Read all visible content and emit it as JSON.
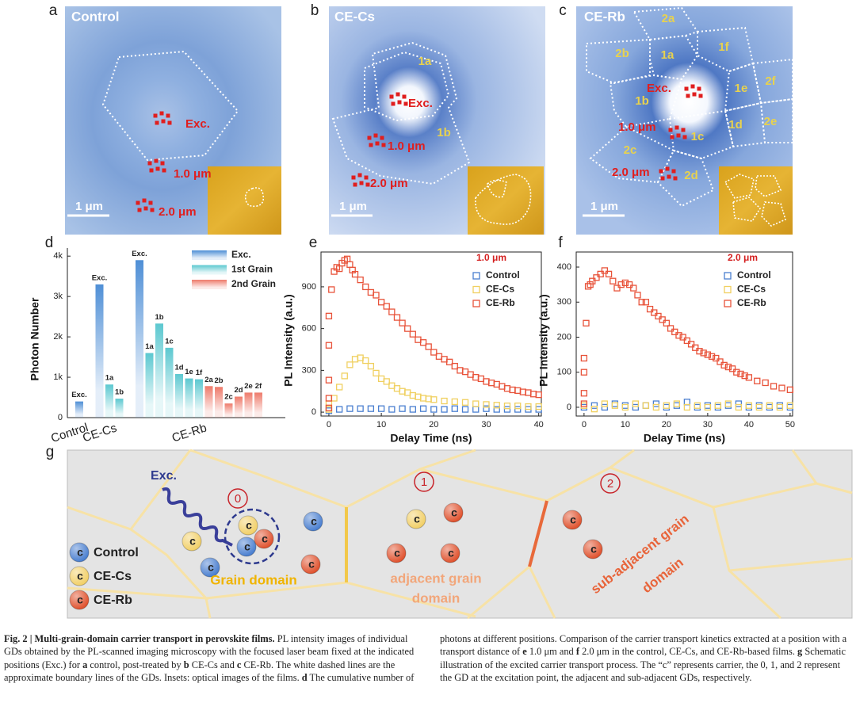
{
  "panel_labels": [
    "a",
    "b",
    "c",
    "d",
    "e",
    "f",
    "g"
  ],
  "images": [
    {
      "title": "Control",
      "exc": "Exc.",
      "near": "1.0 μm",
      "far": "2.0 μm",
      "scale": "1 μm",
      "grains": []
    },
    {
      "title": "CE-Cs",
      "exc": "Exc.",
      "near": "1.0 μm",
      "far": "2.0 μm",
      "scale": "1 μm",
      "grains": [
        "1a",
        "1b"
      ]
    },
    {
      "title": "CE-Rb",
      "exc": "Exc.",
      "near": "1.0 μm",
      "far": "2.0 μm",
      "scale": "1 μm",
      "grains": [
        "2a",
        "2b",
        "1a",
        "1f",
        "1b",
        "1e",
        "2f",
        "1d",
        "2e",
        "1c",
        "2c",
        "2d"
      ]
    }
  ],
  "chart_data": [
    {
      "type": "bar",
      "ylabel": "Photon Number",
      "groups": [
        "Control",
        "CE-Cs",
        "CE-Rb"
      ],
      "categories": [
        [
          "Exc."
        ],
        [
          "Exc.",
          "1a",
          "1b"
        ],
        [
          "Exc.",
          "1a",
          "1b",
          "1c",
          "1d",
          "1e",
          "1f",
          "2a",
          "2b",
          "2c",
          "2d",
          "2e",
          "2f"
        ]
      ],
      "series": [
        {
          "name": "Exc.",
          "color": "#4f8fd6",
          "values": [
            [
              400
            ],
            [
              3300,
              null,
              null
            ],
            [
              3900,
              null,
              null,
              null,
              null,
              null,
              null,
              null,
              null,
              null,
              null,
              null,
              null
            ]
          ]
        },
        {
          "name": "1st Grain",
          "color": "#5cc8d0",
          "values": [
            [
              null
            ],
            [
              null,
              820,
              470
            ],
            [
              null,
              1600,
              2330,
              1730,
              1080,
              970,
              950,
              null,
              null,
              null,
              null,
              null,
              null
            ]
          ]
        },
        {
          "name": "2nd Grain",
          "color": "#ee7a6a",
          "values": [
            [
              null
            ],
            [
              null,
              null,
              null
            ],
            [
              null,
              null,
              null,
              null,
              null,
              null,
              null,
              780,
              760,
              350,
              520,
              620,
              620
            ]
          ]
        }
      ],
      "ylim": [
        0,
        4200
      ],
      "yticks": [
        0,
        {
          "value": 1000,
          "label": "1k"
        },
        {
          "value": 2000,
          "label": "2k"
        },
        {
          "value": 3000,
          "label": "3k"
        },
        {
          "value": 4000,
          "label": "4k"
        }
      ],
      "legend": "upper right"
    },
    {
      "type": "scatter",
      "annotation": "1.0 μm",
      "annotation_color": "#d42020",
      "xlabel": "Delay Time (ns)",
      "ylabel": "PL Intensity (a.u.)",
      "xlim": [
        -1.5,
        40.5
      ],
      "xticks": [
        0,
        10,
        20,
        30,
        40
      ],
      "ylim": [
        -28,
        1150
      ],
      "yticks": [
        0,
        300,
        600,
        900
      ],
      "legend": "upper right",
      "series": [
        {
          "name": "Control",
          "color": "#4a7fd0",
          "x": [
            0,
            2,
            4,
            6,
            8,
            10,
            12,
            14,
            16,
            18,
            20,
            22,
            24,
            26,
            28,
            30,
            32,
            34,
            36,
            38,
            40
          ],
          "values": [
            10,
            20,
            25,
            25,
            25,
            25,
            20,
            25,
            20,
            25,
            20,
            20,
            25,
            20,
            20,
            25,
            20,
            20,
            20,
            20,
            20
          ]
        },
        {
          "name": "CE-Cs",
          "color": "#f0d060",
          "x": [
            0,
            0,
            1,
            2,
            3,
            4,
            5,
            6,
            7,
            8,
            9,
            10,
            11,
            12,
            13,
            14,
            15,
            16,
            17,
            18,
            19,
            20,
            22,
            24,
            26,
            28,
            30,
            32,
            34,
            36,
            38,
            40
          ],
          "values": [
            20,
            60,
            100,
            180,
            260,
            340,
            380,
            390,
            370,
            330,
            280,
            240,
            220,
            190,
            170,
            150,
            140,
            120,
            110,
            100,
            95,
            90,
            80,
            75,
            70,
            60,
            55,
            50,
            45,
            45,
            40,
            40
          ]
        },
        {
          "name": "CE-Rb",
          "color": "#e8533a",
          "x": [
            0,
            0,
            0,
            0,
            0,
            0.5,
            1,
            1.5,
            2,
            2.5,
            3,
            3.5,
            4,
            4.5,
            5,
            6,
            7,
            8,
            9,
            10,
            11,
            12,
            13,
            14,
            15,
            16,
            17,
            18,
            19,
            20,
            21,
            22,
            23,
            24,
            25,
            26,
            27,
            28,
            29,
            30,
            31,
            32,
            33,
            34,
            35,
            36,
            37,
            38,
            39,
            40
          ],
          "values": [
            30,
            100,
            230,
            480,
            690,
            880,
            1010,
            1040,
            1030,
            1070,
            1090,
            1100,
            1060,
            1020,
            990,
            950,
            900,
            860,
            840,
            790,
            760,
            720,
            680,
            640,
            600,
            560,
            520,
            500,
            470,
            430,
            400,
            380,
            360,
            330,
            300,
            290,
            270,
            250,
            240,
            220,
            210,
            200,
            185,
            170,
            160,
            155,
            145,
            140,
            130,
            125
          ]
        }
      ]
    },
    {
      "type": "scatter",
      "annotation": "2.0 μm",
      "annotation_color": "#d42020",
      "xlabel": "Delay Time (ns)",
      "ylabel": "PL Intensity (a.u.)",
      "xlim": [
        -1.9,
        50.6
      ],
      "xticks": [
        0,
        10,
        20,
        30,
        40,
        50
      ],
      "ylim": [
        -25,
        443
      ],
      "yticks": [
        0,
        100,
        200,
        300,
        400
      ],
      "legend": "upper right",
      "series": [
        {
          "name": "Control",
          "color": "#4a7fd0",
          "x": [
            0,
            2.5,
            5,
            7.5,
            10,
            12.5,
            15,
            17.5,
            20,
            22.5,
            25,
            27.5,
            30,
            32.5,
            35,
            37.5,
            40,
            42.5,
            45,
            47.5,
            50
          ],
          "values": [
            0,
            5,
            0,
            10,
            5,
            0,
            5,
            10,
            0,
            5,
            15,
            0,
            5,
            0,
            5,
            10,
            0,
            5,
            0,
            5,
            0
          ]
        },
        {
          "name": "CE-Cs",
          "color": "#f0d060",
          "x": [
            0,
            2.5,
            5,
            7.5,
            10,
            12.5,
            15,
            17.5,
            20,
            22.5,
            25,
            27.5,
            30,
            32.5,
            35,
            37.5,
            40,
            42.5,
            45,
            47.5,
            50
          ],
          "values": [
            5,
            -5,
            10,
            5,
            0,
            10,
            5,
            0,
            5,
            10,
            0,
            5,
            0,
            5,
            10,
            0,
            5,
            0,
            5,
            0,
            5
          ]
        },
        {
          "name": "CE-Rb",
          "color": "#e8533a",
          "x": [
            0,
            0,
            0,
            0,
            0.5,
            1,
            1.5,
            2,
            3,
            4,
            5,
            6,
            7,
            8,
            9,
            10,
            11,
            12,
            13,
            14,
            15,
            16,
            17,
            18,
            19,
            20,
            21,
            22,
            23,
            24,
            25,
            26,
            27,
            28,
            29,
            30,
            31,
            32,
            33,
            34,
            35,
            36,
            37,
            38,
            39,
            40,
            42,
            44,
            46,
            48,
            50
          ],
          "values": [
            10,
            40,
            100,
            140,
            240,
            345,
            350,
            360,
            370,
            380,
            390,
            380,
            360,
            340,
            350,
            355,
            350,
            340,
            320,
            300,
            300,
            280,
            270,
            260,
            250,
            240,
            225,
            215,
            205,
            200,
            190,
            180,
            170,
            160,
            155,
            150,
            145,
            140,
            130,
            120,
            115,
            110,
            100,
            95,
            90,
            85,
            75,
            70,
            60,
            55,
            50
          ]
        }
      ]
    }
  ],
  "schematic": {
    "excitation": "Exc.",
    "domains": [
      "0",
      "1",
      "2"
    ],
    "carrier_label": "c",
    "legend": [
      {
        "name": "Control",
        "color": "#4a7fd0"
      },
      {
        "name": "CE-Cs",
        "color": "#f2d068"
      },
      {
        "name": "CE-Rb",
        "color": "#e0522e"
      }
    ],
    "domain_labels": [
      {
        "lines": [
          "Grain domain"
        ],
        "color": "#f0b400"
      },
      {
        "lines": [
          "adjacent grain",
          "domain"
        ],
        "color": "#f2a67a"
      },
      {
        "lines": [
          "sub-adjacent grain",
          "domain"
        ],
        "color": "#e8643a"
      }
    ]
  },
  "caption": {
    "runs": [
      {
        "text": "Fig. 2 | Multi-grain-domain carrier transport in perovskite films.",
        "bold": true
      },
      {
        "text": " PL intensity images of individual GDs obtained by the PL-scanned imaging microscopy with the focused laser beam fixed at the indicated positions (Exc.) for ",
        "bold": false
      },
      {
        "text": "a",
        "bold": true
      },
      {
        "text": " control, post-treated by ",
        "bold": false
      },
      {
        "text": "b",
        "bold": true
      },
      {
        "text": " CE-Cs and ",
        "bold": false
      },
      {
        "text": "c",
        "bold": true
      },
      {
        "text": " CE-Rb. The white dashed lines are the approximate boundary lines of the GDs. Insets: optical images of the films. ",
        "bold": false
      },
      {
        "text": "d",
        "bold": true
      },
      {
        "text": " The cumulative number of photons at different positions. Comparison of the carrier transport kinetics extracted at a position with a transport distance of ",
        "bold": false
      },
      {
        "text": "e",
        "bold": true
      },
      {
        "text": " 1.0 μm and ",
        "bold": false
      },
      {
        "text": "f",
        "bold": true
      },
      {
        "text": " 2.0 μm in the control, CE-Cs, and CE-Rb-based films. ",
        "bold": false
      },
      {
        "text": "g",
        "bold": true
      },
      {
        "text": " Schematic illustration of the excited carrier transport process. The “c” represents carrier, the 0, 1, and 2 represent the GD at the excitation point, the adjacent and sub-adjacent GDs, respectively.",
        "bold": false
      }
    ]
  }
}
